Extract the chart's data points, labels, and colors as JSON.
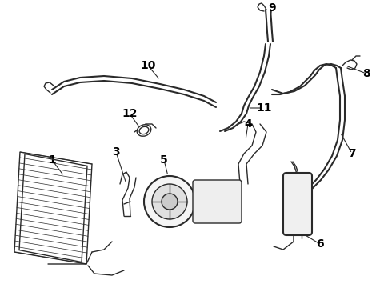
{
  "bg_color": "#ffffff",
  "line_color": "#2a2a2a",
  "label_color": "#000000",
  "label_fontsize": 10,
  "label_fontweight": "bold",
  "fig_width": 4.9,
  "fig_height": 3.6,
  "dpi": 100
}
